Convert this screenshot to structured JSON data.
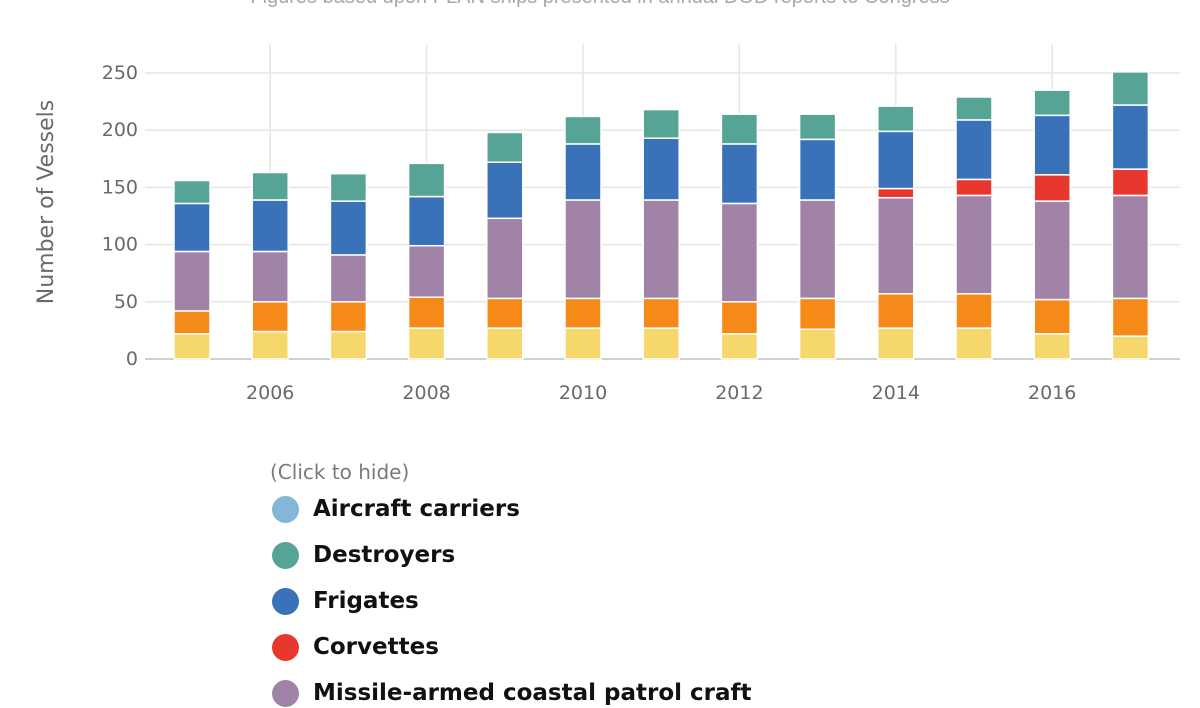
{
  "subtitle": "Figures based upon PLAN ships presented in annual DOD reports to Congress",
  "legend_hint": "(Click to hide)",
  "chart_data": {
    "type": "bar",
    "stacked": true,
    "ylabel": "Number of Vessels",
    "xlabel": "",
    "ylim": [
      0,
      250
    ],
    "yticks": [
      0,
      50,
      100,
      150,
      200,
      250
    ],
    "x": [
      2005,
      2006,
      2007,
      2008,
      2009,
      2010,
      2011,
      2012,
      2013,
      2014,
      2015,
      2016,
      2017
    ],
    "xticks": [
      2006,
      2008,
      2010,
      2012,
      2014,
      2016
    ],
    "grid": true,
    "legend_position": "bottom",
    "series": [
      {
        "name": "",
        "color": "#f6d76b",
        "values": [
          22,
          24,
          24,
          27,
          27,
          27,
          27,
          22,
          26,
          27,
          27,
          22,
          20
        ]
      },
      {
        "name": "",
        "color": "#f68a19",
        "values": [
          20,
          26,
          26,
          27,
          26,
          26,
          26,
          28,
          27,
          30,
          30,
          30,
          33
        ]
      },
      {
        "name": "Missile-armed coastal patrol craft",
        "color": "#a283a8",
        "values": [
          52,
          44,
          41,
          45,
          70,
          86,
          86,
          86,
          86,
          84,
          86,
          86,
          90
        ]
      },
      {
        "name": "Corvettes",
        "color": "#e8382d",
        "values": [
          0,
          0,
          0,
          0,
          0,
          0,
          0,
          0,
          0,
          8,
          14,
          23,
          23
        ]
      },
      {
        "name": "Frigates",
        "color": "#3a72ba",
        "values": [
          42,
          45,
          47,
          43,
          49,
          49,
          54,
          52,
          53,
          50,
          52,
          52,
          56
        ]
      },
      {
        "name": "Destroyers",
        "color": "#55a495",
        "values": [
          20,
          24,
          24,
          29,
          26,
          24,
          25,
          26,
          22,
          22,
          20,
          22,
          29
        ]
      },
      {
        "name": "Aircraft carriers",
        "color": "#83b6d9",
        "values": [
          0,
          0,
          0,
          0,
          0,
          0,
          0,
          0,
          0,
          0,
          0,
          0,
          0
        ]
      }
    ]
  },
  "legend": [
    {
      "label": "Aircraft carriers",
      "color": "#83b6d9"
    },
    {
      "label": "Destroyers",
      "color": "#55a495"
    },
    {
      "label": "Frigates",
      "color": "#3a72ba"
    },
    {
      "label": "Corvettes",
      "color": "#e8382d"
    },
    {
      "label": "Missile-armed coastal patrol craft",
      "color": "#a283a8"
    }
  ]
}
